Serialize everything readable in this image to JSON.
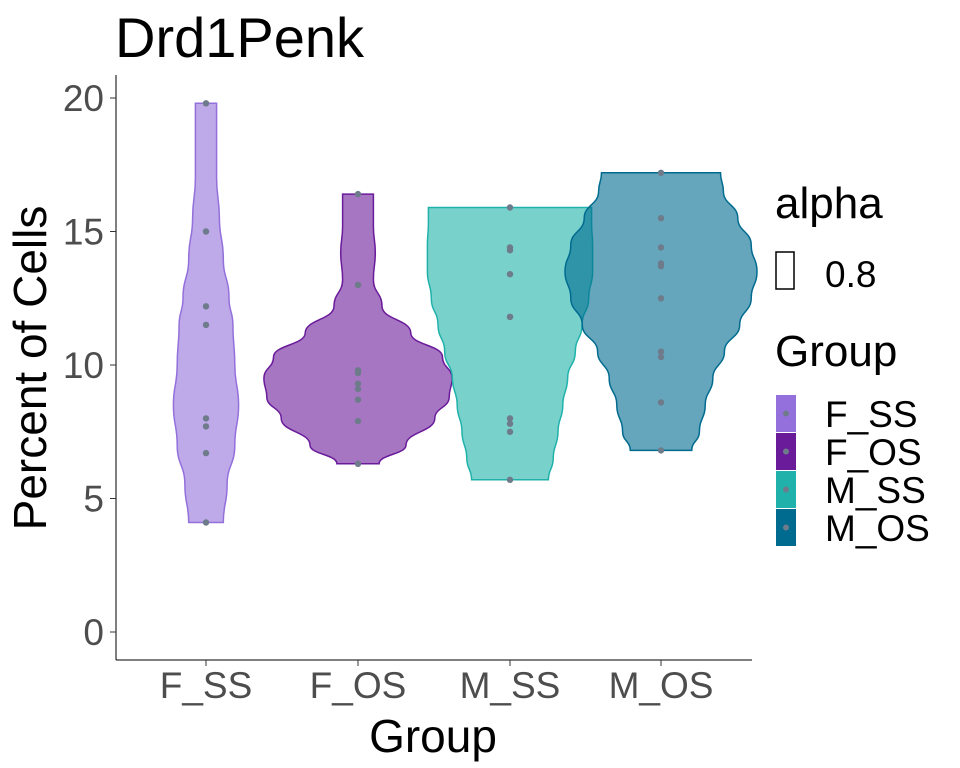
{
  "chart_data": {
    "type": "violin",
    "title": "Drd1Penk",
    "xlabel": "Group",
    "ylabel": "Percent of Cells",
    "ylim": [
      -1,
      21
    ],
    "yticks": [
      0,
      5,
      10,
      15,
      20
    ],
    "categories": [
      "F_SS",
      "F_OS",
      "M_SS",
      "M_OS"
    ],
    "colors": {
      "F_SS": "#9370DB",
      "F_OS": "#6A1B9A",
      "M_SS": "#20B2AA",
      "M_OS": "#006B8F"
    },
    "point_color": "#6E7B8B",
    "fill_opacity": 0.6,
    "grid": false,
    "legend_placement": "right",
    "series": [
      {
        "category": "F_SS",
        "points": [
          19.8,
          15.0,
          12.2,
          11.5,
          8.0,
          7.7,
          6.7,
          4.1
        ],
        "profile": [
          [
            4.1,
            0.18
          ],
          [
            5.5,
            0.22
          ],
          [
            7,
            0.3
          ],
          [
            8.5,
            0.34
          ],
          [
            10,
            0.3
          ],
          [
            11.5,
            0.28
          ],
          [
            12.5,
            0.24
          ],
          [
            14,
            0.18
          ],
          [
            15.5,
            0.14
          ],
          [
            17,
            0.11
          ],
          [
            18.5,
            0.11
          ],
          [
            19.8,
            0.11
          ]
        ]
      },
      {
        "category": "F_OS",
        "points": [
          16.4,
          13.0,
          13.0,
          9.8,
          9.7,
          9.3,
          9.1,
          8.7,
          7.9,
          6.3
        ],
        "profile": [
          [
            6.3,
            0.22
          ],
          [
            7,
            0.5
          ],
          [
            8,
            0.8
          ],
          [
            8.8,
            0.95
          ],
          [
            9.5,
            0.98
          ],
          [
            10.3,
            0.88
          ],
          [
            11.2,
            0.55
          ],
          [
            12.2,
            0.25
          ],
          [
            13.2,
            0.16
          ],
          [
            14.2,
            0.18
          ],
          [
            15.2,
            0.16
          ],
          [
            16.4,
            0.16
          ]
        ]
      },
      {
        "category": "M_SS",
        "points": [
          15.9,
          14.4,
          14.3,
          13.4,
          11.8,
          11.8,
          8.0,
          7.8,
          7.5,
          5.7
        ],
        "profile": [
          [
            5.7,
            0.4
          ],
          [
            6.5,
            0.45
          ],
          [
            7.5,
            0.5
          ],
          [
            8.5,
            0.55
          ],
          [
            9.5,
            0.6
          ],
          [
            10.5,
            0.68
          ],
          [
            11.5,
            0.75
          ],
          [
            12.5,
            0.82
          ],
          [
            13.5,
            0.86
          ],
          [
            14.5,
            0.86
          ],
          [
            15.3,
            0.85
          ],
          [
            15.9,
            0.85
          ]
        ]
      },
      {
        "category": "M_OS",
        "points": [
          17.2,
          15.5,
          14.4,
          13.8,
          13.7,
          12.5,
          10.5,
          10.3,
          8.6,
          6.8
        ],
        "profile": [
          [
            6.8,
            0.32
          ],
          [
            7.5,
            0.4
          ],
          [
            8.5,
            0.46
          ],
          [
            9.5,
            0.54
          ],
          [
            10.5,
            0.66
          ],
          [
            11.5,
            0.82
          ],
          [
            12.5,
            0.94
          ],
          [
            13.5,
            1.0
          ],
          [
            14.5,
            0.94
          ],
          [
            15.5,
            0.8
          ],
          [
            16.5,
            0.65
          ],
          [
            17.2,
            0.62
          ]
        ]
      }
    ]
  },
  "legend": {
    "alpha": {
      "title": "alpha",
      "value": "0.8"
    },
    "group": {
      "title": "Group",
      "items": [
        "F_SS",
        "F_OS",
        "M_SS",
        "M_OS"
      ]
    }
  }
}
